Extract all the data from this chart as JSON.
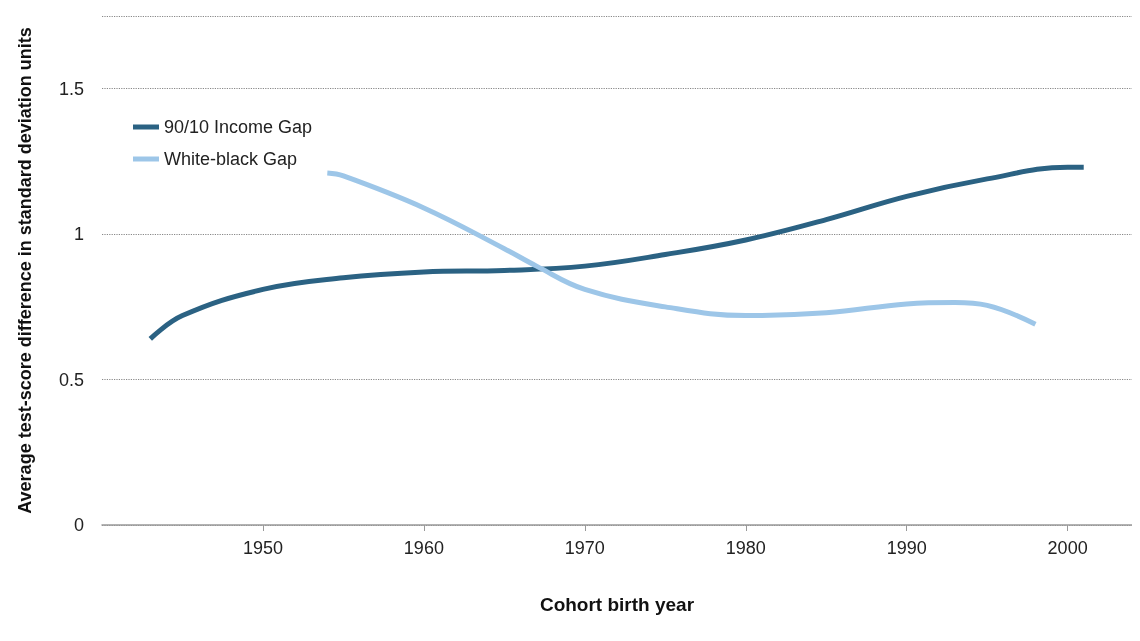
{
  "chart_data": {
    "type": "line",
    "xlabel": "Cohort birth year",
    "ylabel": "Average test-score difference in standard deviation units",
    "xlim": [
      1940,
      2004
    ],
    "xticks": [
      1950,
      1960,
      1970,
      1980,
      1990,
      2000
    ],
    "ylim": [
      0,
      1.75
    ],
    "yticks": [
      0,
      0.5,
      1,
      1.5
    ],
    "grid": "y",
    "legend": "top left",
    "marker": "none",
    "line_style": "solid",
    "series": [
      {
        "name": "90/10 Income Gap",
        "color": "#2b6283",
        "x": [
          1943,
          1945,
          1950,
          1955,
          1960,
          1965,
          1970,
          1975,
          1980,
          1985,
          1990,
          1995,
          2000,
          2001
        ],
        "values": [
          0.64,
          0.72,
          0.81,
          0.85,
          0.87,
          0.875,
          0.89,
          0.93,
          0.98,
          1.05,
          1.13,
          1.19,
          1.23,
          1.23
        ]
      },
      {
        "name": "White-black Gap",
        "color": "#9dc6e8",
        "x": [
          1954,
          1955,
          1960,
          1965,
          1967,
          1970,
          1975,
          1980,
          1985,
          1990,
          1993,
          1995,
          1998
        ],
        "values": [
          1.21,
          1.2,
          1.09,
          0.95,
          0.89,
          0.81,
          0.75,
          0.72,
          0.73,
          0.76,
          0.765,
          0.755,
          0.69
        ]
      }
    ]
  }
}
